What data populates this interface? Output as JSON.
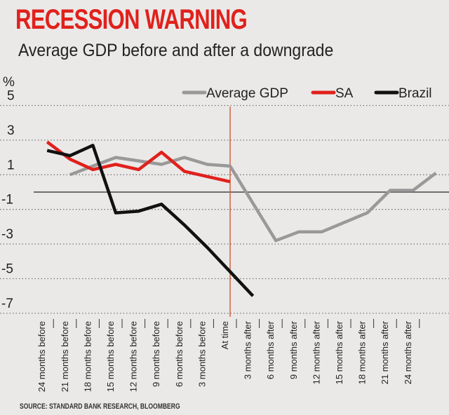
{
  "title": "RECESSION WARNING",
  "subtitle": "Average GDP before and after a downgrade",
  "source": "SOURCE: STANDARD BANK RESEARCH, BLOOMBERG",
  "chart_data": {
    "type": "line",
    "ylabel": "%",
    "ylim": [
      -7,
      5
    ],
    "yticks": [
      5,
      3,
      1,
      -1,
      -3,
      -5,
      -7
    ],
    "grid": "dotted horizontal at ticks, solid line at 0",
    "legend_placement": "top-right",
    "categories": [
      "24 months before",
      "21 months before",
      "18 months before",
      "15 months before",
      "12 months before",
      "9 months before",
      "6 months before",
      "3 months before",
      "At time",
      "3 months after",
      "6 months after",
      "9 months after",
      "12 months after",
      "15 months after",
      "18 months after",
      "21 months after",
      "24 months after"
    ],
    "category_months": [
      -24,
      -21,
      -18,
      -15,
      -12,
      -9,
      -6,
      -3,
      0,
      3,
      6,
      9,
      12,
      15,
      18,
      21,
      24
    ],
    "marker_line_month": 0,
    "series": [
      {
        "name": "Average GDP",
        "color": "#999999",
        "points": [
          [
            -21,
            1.0
          ],
          [
            -18,
            1.5
          ],
          [
            -15,
            2.0
          ],
          [
            -12,
            1.8
          ],
          [
            -9,
            1.6
          ],
          [
            -6,
            2.0
          ],
          [
            -3,
            1.6
          ],
          [
            0,
            1.5
          ],
          [
            6,
            -2.8
          ],
          [
            9,
            -2.3
          ],
          [
            12,
            -2.3
          ],
          [
            18,
            -1.2
          ],
          [
            21,
            0.1
          ],
          [
            24,
            0.1
          ],
          [
            27,
            1.1
          ]
        ]
      },
      {
        "name": "SA",
        "color": "#e0211c",
        "points": [
          [
            -24,
            2.9
          ],
          [
            -21,
            1.9
          ],
          [
            -18,
            1.3
          ],
          [
            -15,
            1.6
          ],
          [
            -12,
            1.3
          ],
          [
            -9,
            2.3
          ],
          [
            -6,
            1.2
          ],
          [
            -3,
            0.9
          ],
          [
            0,
            0.6
          ]
        ]
      },
      {
        "name": "Brazil",
        "color": "#111111",
        "points": [
          [
            -24,
            2.4
          ],
          [
            -21,
            2.1
          ],
          [
            -18,
            2.7
          ],
          [
            -15,
            -1.2
          ],
          [
            -12,
            -1.1
          ],
          [
            -9,
            -0.7
          ],
          [
            -6,
            -1.9
          ],
          [
            -3,
            -3.2
          ],
          [
            0,
            -4.6
          ],
          [
            3,
            -6.0
          ]
        ]
      }
    ]
  }
}
